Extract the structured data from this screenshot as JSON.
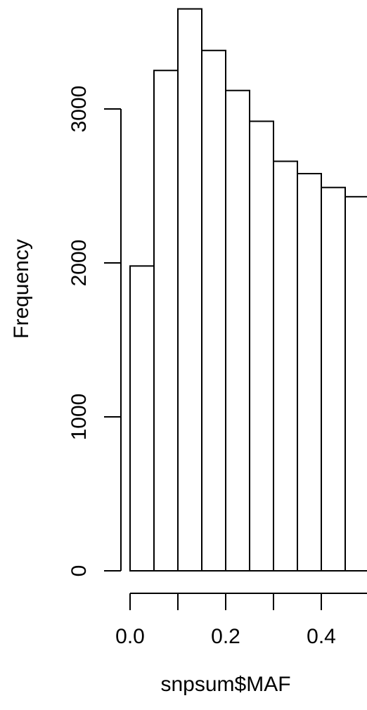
{
  "chart_data": {
    "type": "bar",
    "title": "",
    "xlabel": "snpsum$MAF",
    "ylabel": "Frequency",
    "bin_width": 0.05,
    "bins": [
      {
        "start": 0.0,
        "end": 0.05,
        "count": 1980
      },
      {
        "start": 0.05,
        "end": 0.1,
        "count": 3250
      },
      {
        "start": 0.1,
        "end": 0.15,
        "count": 3650
      },
      {
        "start": 0.15,
        "end": 0.2,
        "count": 3380
      },
      {
        "start": 0.2,
        "end": 0.25,
        "count": 3120
      },
      {
        "start": 0.25,
        "end": 0.3,
        "count": 2920
      },
      {
        "start": 0.3,
        "end": 0.35,
        "count": 2660
      },
      {
        "start": 0.35,
        "end": 0.4,
        "count": 2580
      },
      {
        "start": 0.4,
        "end": 0.45,
        "count": 2490
      },
      {
        "start": 0.45,
        "end": 0.5,
        "count": 2430
      }
    ],
    "x_ticks": [
      0.0,
      0.1,
      0.2,
      0.3,
      0.4,
      0.5
    ],
    "x_tick_labels": [
      "0.0",
      "",
      "0.2",
      "",
      "0.4",
      ""
    ],
    "y_ticks": [
      0,
      1000,
      2000,
      3000
    ],
    "y_tick_labels": [
      "0",
      "1000",
      "2000",
      "3000"
    ],
    "xlim": [
      0.0,
      0.5
    ],
    "ylim": [
      0,
      3650
    ],
    "grid": false,
    "legend": "none"
  }
}
